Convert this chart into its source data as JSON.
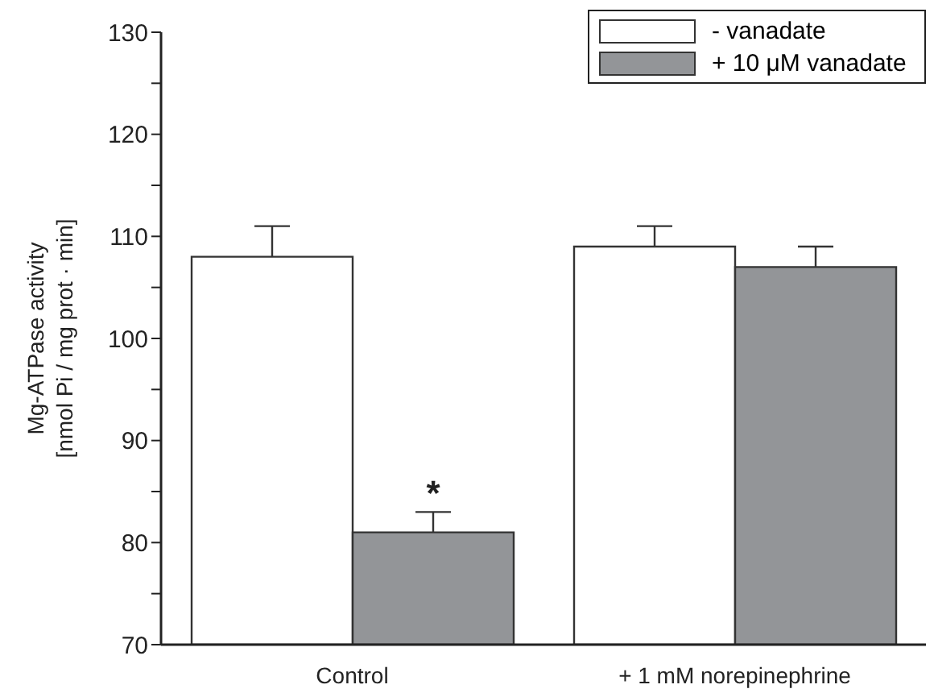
{
  "chart_data": {
    "type": "bar",
    "ylabel": "Mg-ATPase activity\n[nmol Pi / mg prot · min]",
    "categories": [
      "Control",
      "+ 1 mM norepinephrine"
    ],
    "series": [
      {
        "name": "- vanadate",
        "color": "#ffffff",
        "values": [
          108,
          109
        ],
        "errors": [
          [
            108,
            111
          ],
          [
            109,
            111
          ]
        ]
      },
      {
        "name": "+ 10 μM vanadate",
        "color": "#939598",
        "values": [
          81,
          107
        ],
        "errors": [
          [
            81,
            83
          ],
          [
            107,
            109
          ]
        ]
      }
    ],
    "ylim": [
      70,
      130
    ],
    "yticks": [
      70,
      {
        "value": 75,
        "label": null
      },
      80,
      {
        "value": 85,
        "label": null
      },
      90,
      {
        "value": 95,
        "label": null
      },
      100,
      {
        "value": 105,
        "label": null
      },
      110,
      {
        "value": 115,
        "label": null
      },
      120,
      {
        "value": 125,
        "label": null
      },
      130
    ],
    "annotations": [
      {
        "text": "*",
        "x": "Control",
        "y": 83
      }
    ],
    "legend": "top right",
    "grid": false
  }
}
